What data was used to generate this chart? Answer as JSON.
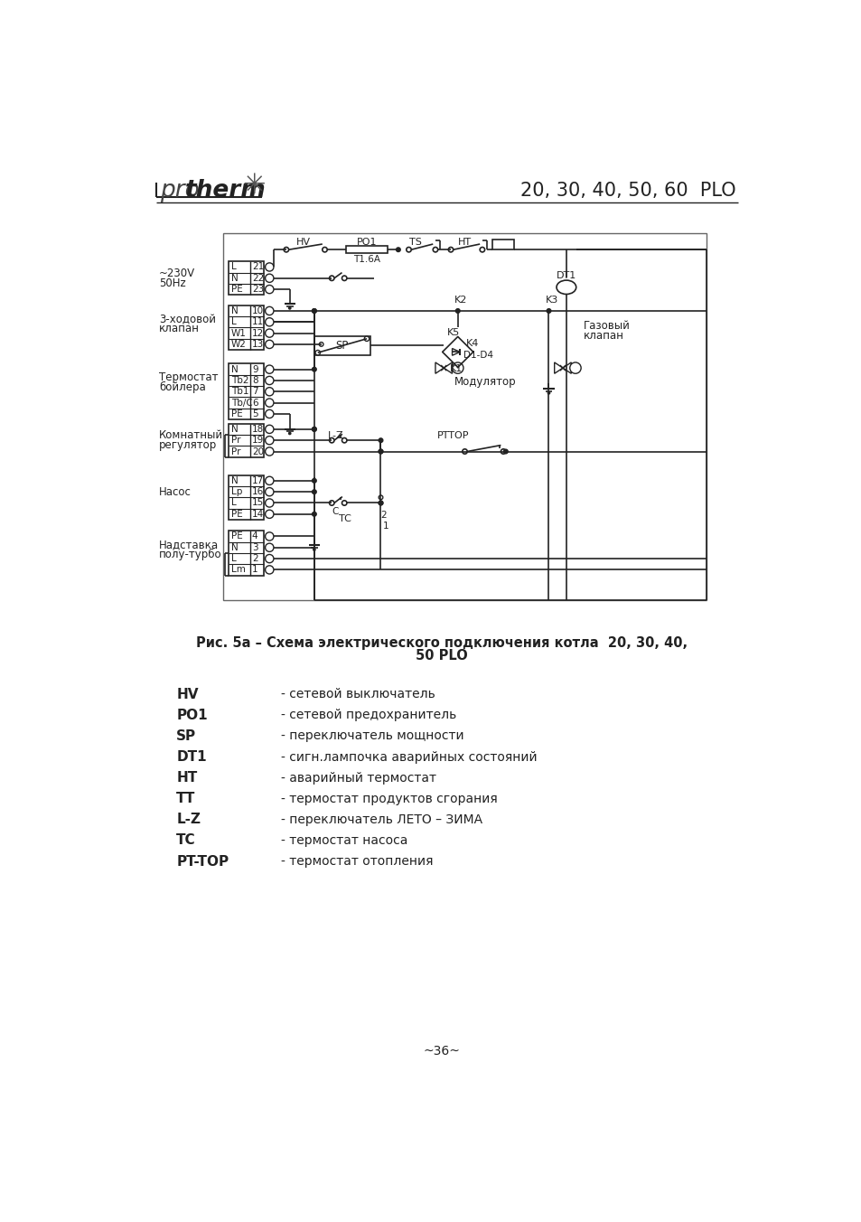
{
  "title_model": "20, 30, 40, 50, 60  PLO",
  "page_number": "~36~",
  "legend": [
    [
      "HV",
      "- сетевой выключатель"
    ],
    [
      "PO1",
      "- сетевой предохранитель"
    ],
    [
      "SP",
      "- переключатель мощности"
    ],
    [
      "DT1",
      "- сигн.лампочка аварийных состояний"
    ],
    [
      "HT",
      "- аварийный термостат"
    ],
    [
      "TT",
      "- термостат продуктов сгорания"
    ],
    [
      "L-Z",
      "- переключатель ЛЕТО – ЗИМА"
    ],
    [
      "TC",
      "- термостат насоса"
    ],
    [
      "PT-TOP",
      "- термостат отопления"
    ]
  ],
  "bg_color": "#ffffff",
  "text_color": "#222222",
  "line_color": "#222222"
}
